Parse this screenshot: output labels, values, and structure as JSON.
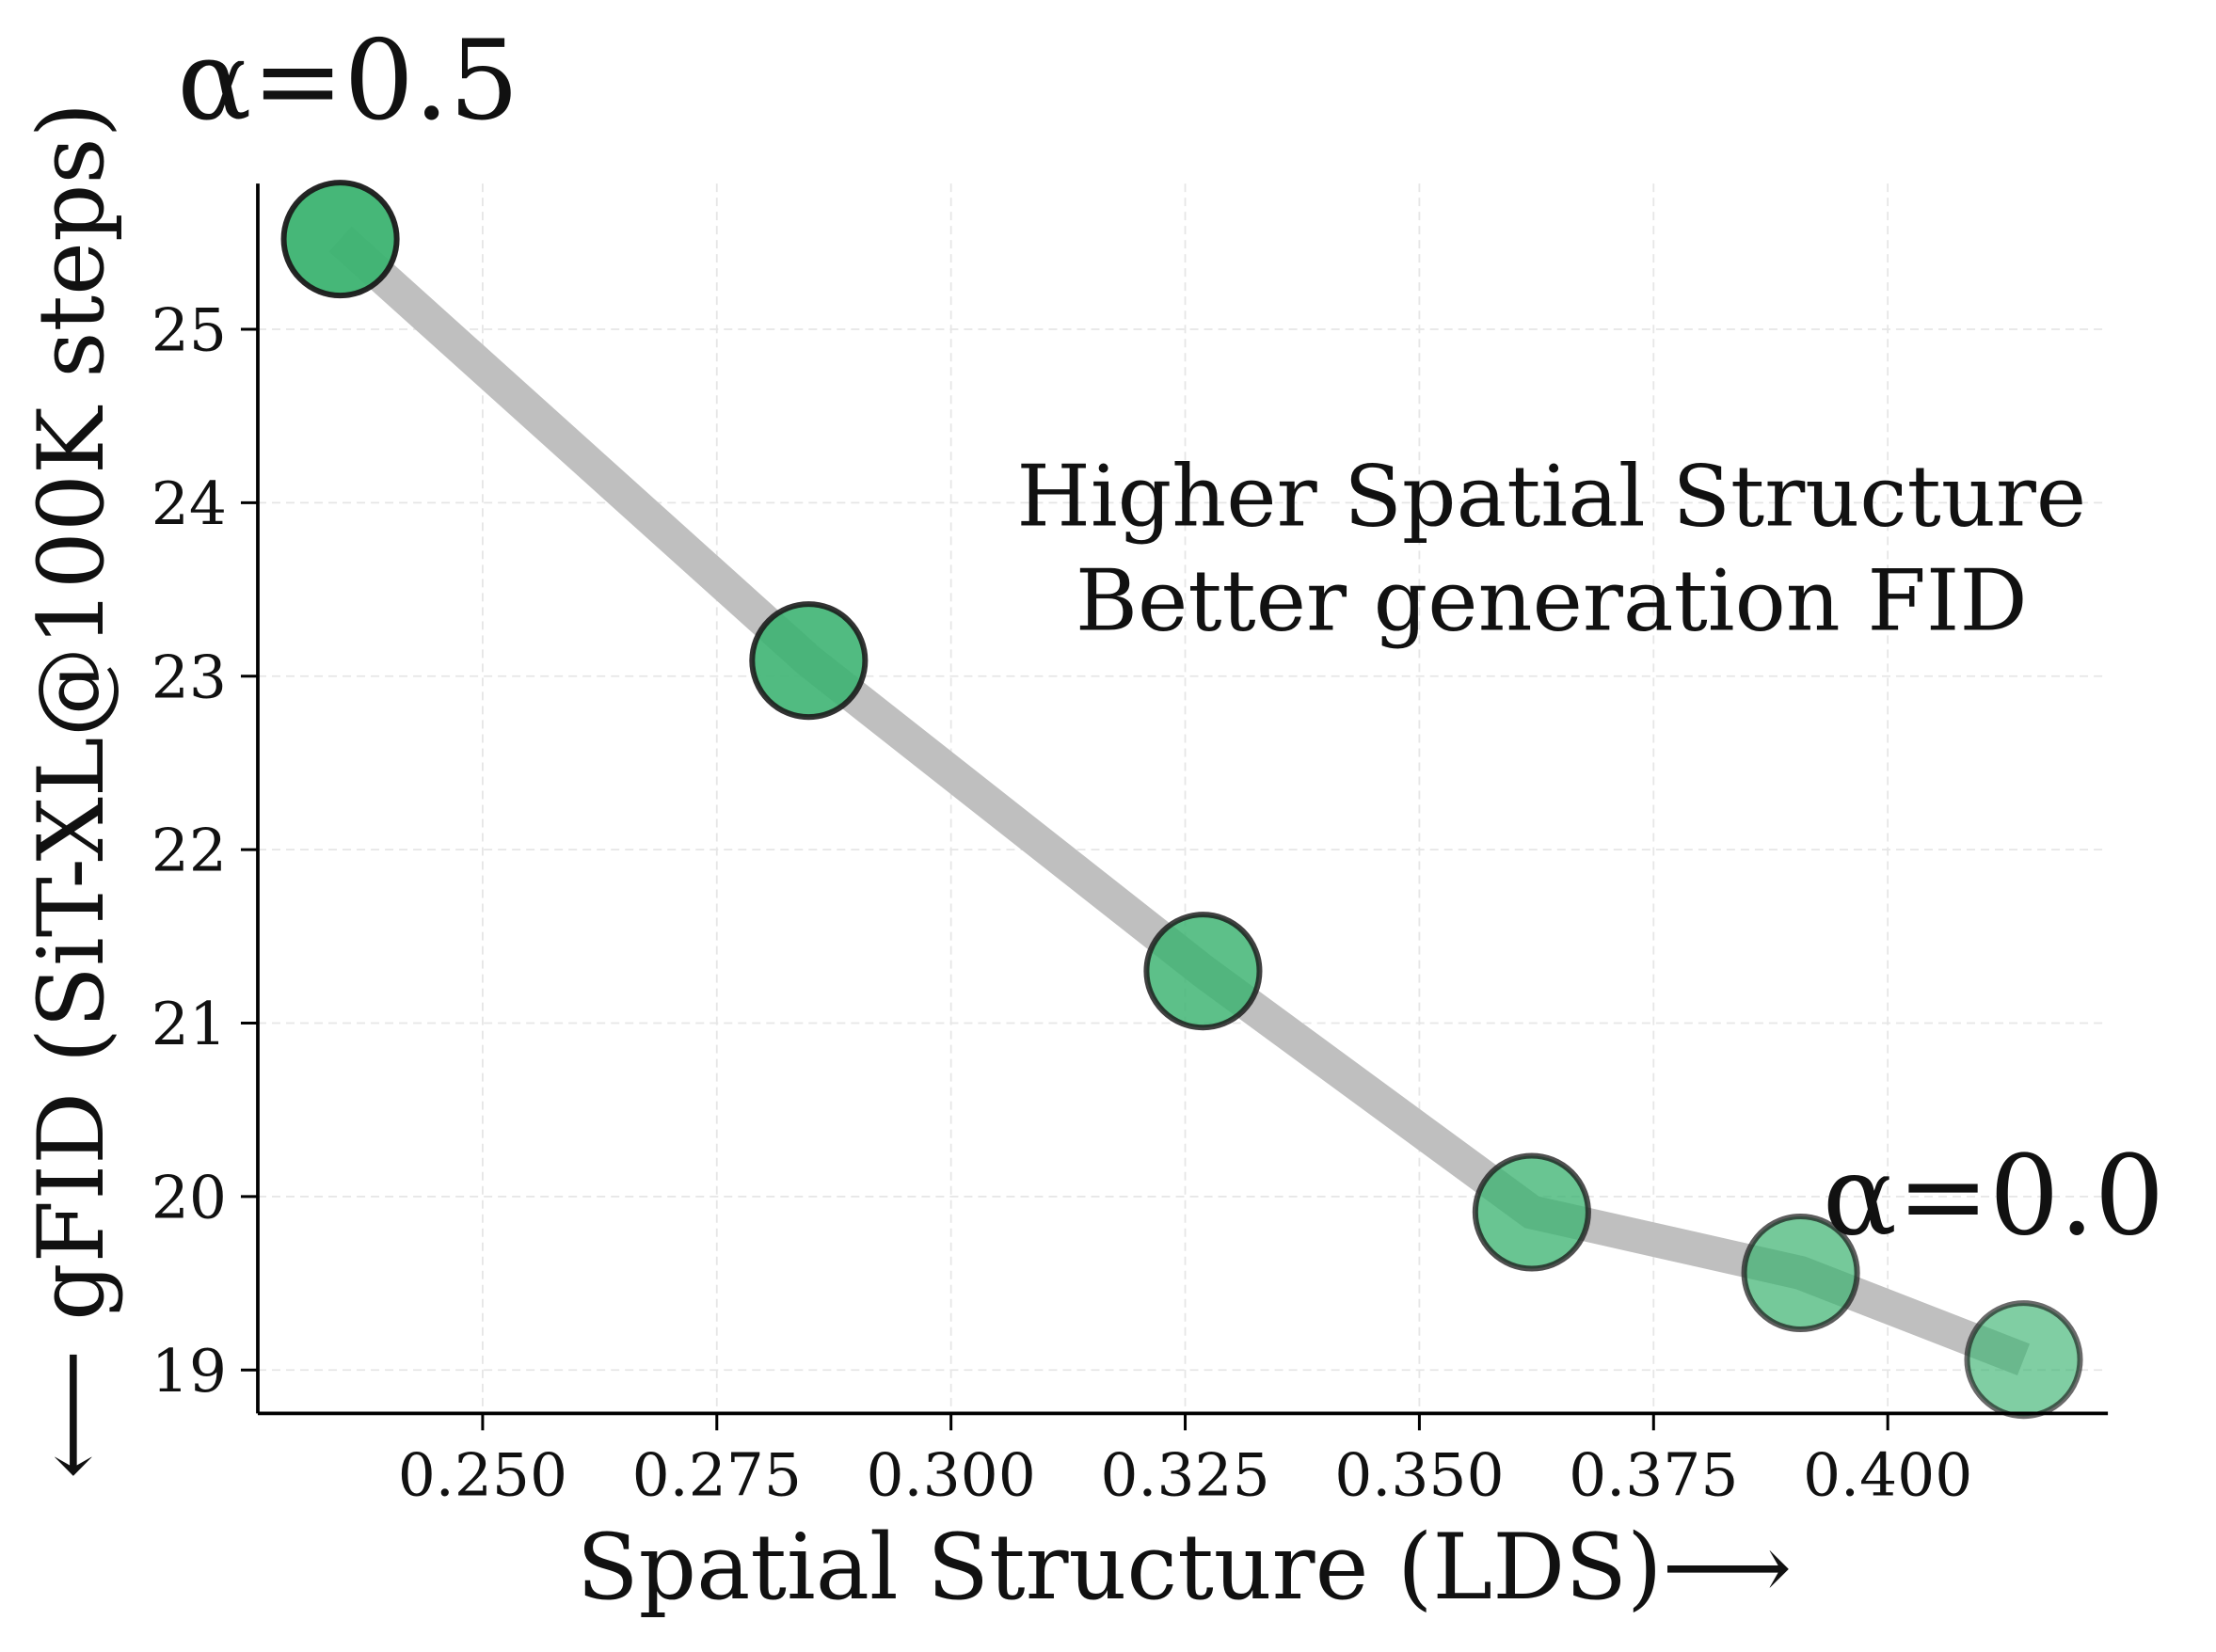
{
  "chart_data": {
    "type": "line",
    "xlabel": "Spatial Structure (LDS)",
    "xlabel_arrow": "⟶",
    "ylabel": "gFID (SiT-XL@100K steps)",
    "ylabel_arrow": "⟵",
    "xlim": [
      0.226,
      0.4235
    ],
    "ylim": [
      18.75,
      25.84
    ],
    "xticks": [
      "0.250",
      "0.275",
      "0.300",
      "0.325",
      "0.350",
      "0.375",
      "0.400"
    ],
    "yticks": [
      "19",
      "20",
      "21",
      "22",
      "23",
      "24",
      "25"
    ],
    "grid": true,
    "series": [
      {
        "x": [
          0.2348,
          0.2848,
          0.3269,
          0.362,
          0.3907,
          0.4145
        ],
        "y": [
          25.52,
          23.09,
          21.3,
          19.91,
          19.56,
          19.06
        ],
        "line_color": "#bfbfbf",
        "marker_color": "#3cb371",
        "marker_edge": "#1a1a1a"
      }
    ],
    "annotations": {
      "alpha_start": "α=0.5",
      "alpha_end": "α=0.0",
      "note_line1": "Higher Spatial Structure",
      "note_line2": "Better generation FID"
    }
  }
}
